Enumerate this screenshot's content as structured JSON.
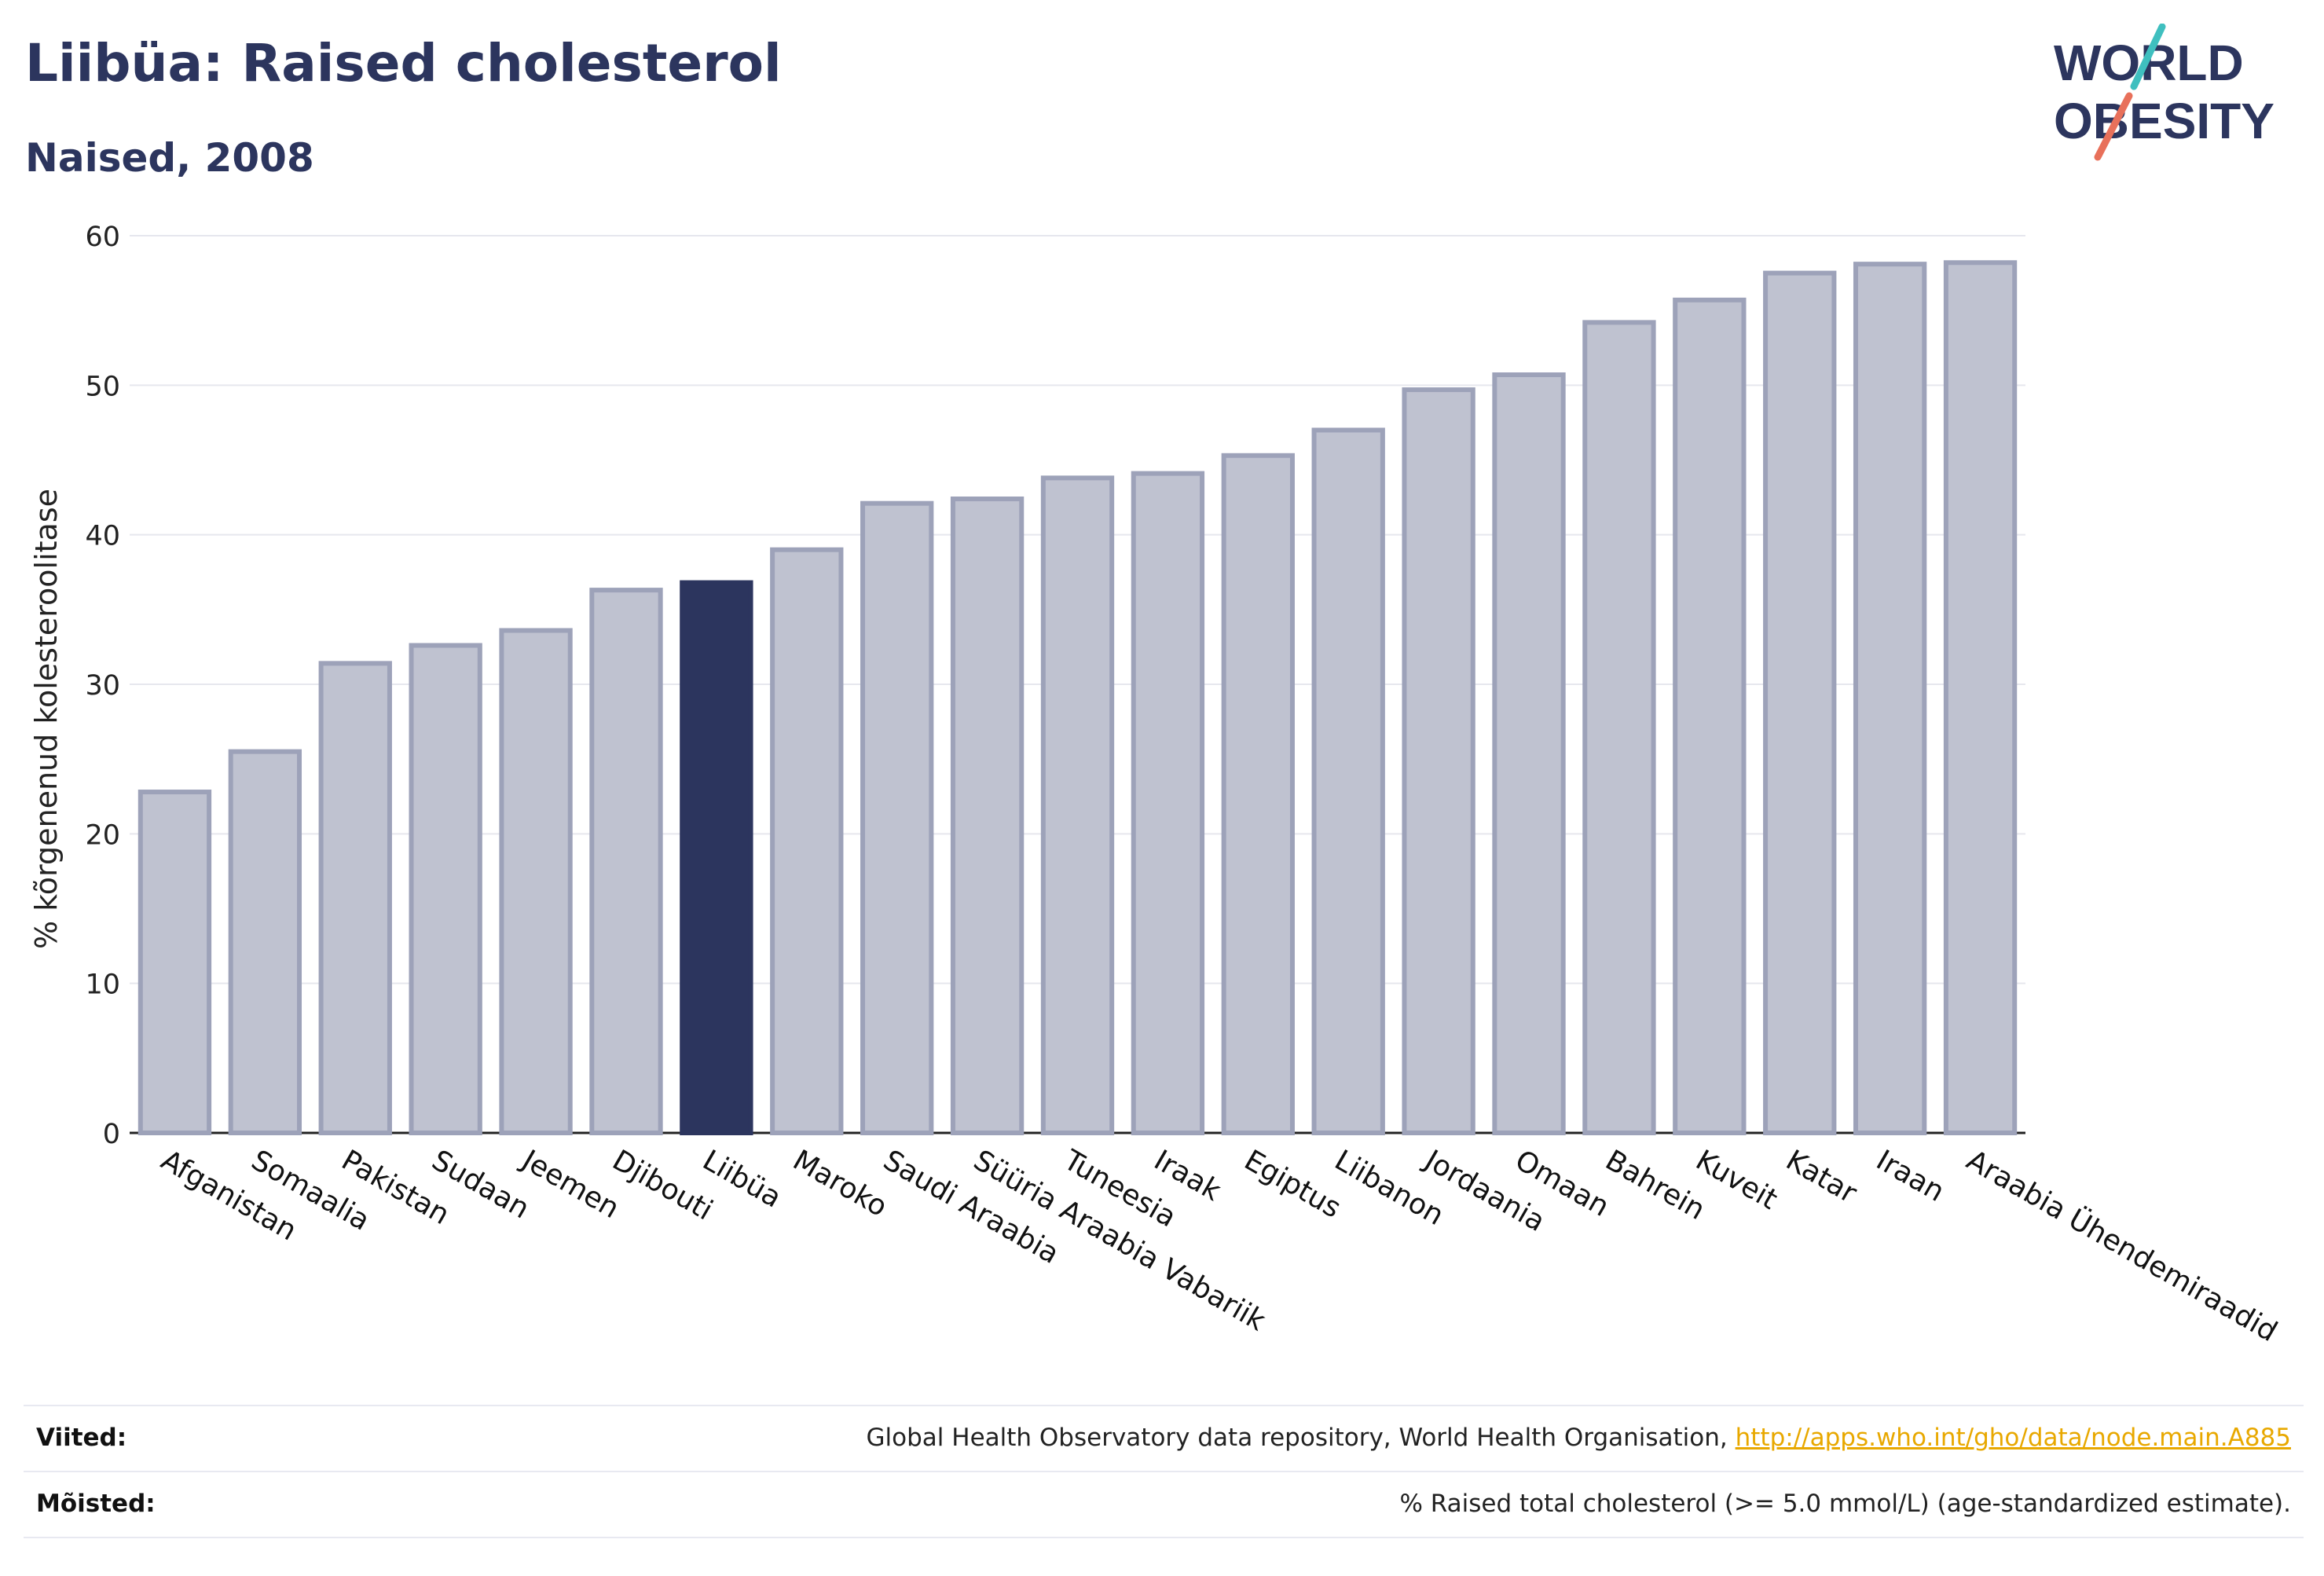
{
  "header": {
    "title": "Liibüa: Raised cholesterol",
    "subtitle": "Naised, 2008"
  },
  "logo": {
    "line1": "WORLD",
    "line2": "OBESITY",
    "accent_teal": "#3fbfbf",
    "accent_coral": "#e8705a"
  },
  "chart_data": {
    "type": "bar",
    "categories": [
      "Afganistan",
      "Somaalia",
      "Pakistan",
      "Sudaan",
      "Jeemen",
      "Djibouti",
      "Liibüa",
      "Maroko",
      "Saudi Araabia",
      "Süüria Araabia Vabariik",
      "Tuneesia",
      "Iraak",
      "Egiptus",
      "Liibanon",
      "Jordaania",
      "Omaan",
      "Bahrein",
      "Kuveit",
      "Katar",
      "Iraan",
      "Araabia Ühendemiraadid"
    ],
    "values": [
      22.8,
      25.5,
      31.4,
      32.6,
      33.6,
      36.3,
      36.8,
      39.0,
      42.1,
      42.4,
      43.8,
      44.1,
      45.3,
      47.0,
      49.7,
      50.7,
      54.2,
      55.7,
      57.5,
      58.1,
      58.2
    ],
    "highlight": "Liibüa",
    "ylabel": "% kõrgenenud kolesteroolitase",
    "ylim": [
      0,
      60
    ],
    "yticks": [
      0,
      10,
      20,
      30,
      40,
      50,
      60
    ],
    "grid": true,
    "colors": {
      "bar": "#bfc2d0",
      "bar_border": "#9da2b9",
      "highlight": "#2c355e",
      "grid": "#e6e7ee"
    }
  },
  "footer": {
    "sources_label": "Viited:",
    "sources_text": "Global Health Observatory data repository, World Health Organisation, ",
    "sources_link": "http://apps.who.int/gho/data/node.main.A885",
    "definitions_label": "Mõisted:",
    "definitions_text": "% Raised total cholesterol (>= 5.0 mmol/L) (age-standardized estimate)."
  }
}
